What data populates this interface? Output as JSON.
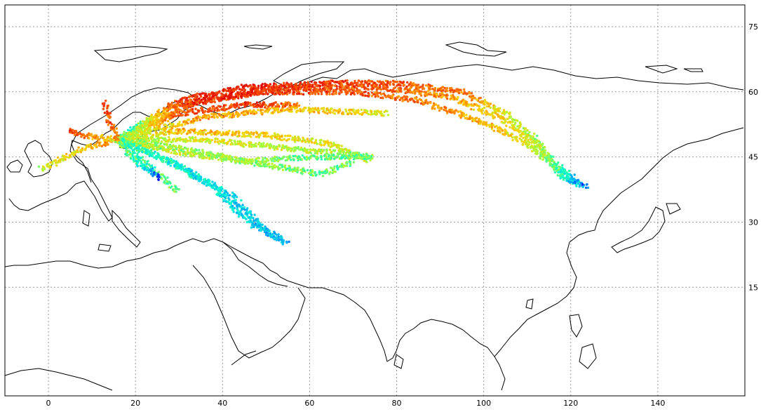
{
  "map": {
    "projection": "equirectangular",
    "lon_range": [
      -10,
      160
    ],
    "lat_range": [
      -10,
      80
    ],
    "grid": true,
    "x_ticks": [
      {
        "value": 0,
        "label": "0"
      },
      {
        "value": 20,
        "label": "20"
      },
      {
        "value": 40,
        "label": "40"
      },
      {
        "value": 60,
        "label": "60"
      },
      {
        "value": 80,
        "label": "80"
      },
      {
        "value": 100,
        "label": "100"
      },
      {
        "value": 120,
        "label": "120"
      },
      {
        "value": 140,
        "label": "140"
      }
    ],
    "y_ticks": [
      {
        "value": 15,
        "label": "15"
      },
      {
        "value": 30,
        "label": "30"
      },
      {
        "value": 45,
        "label": "45"
      },
      {
        "value": 60,
        "label": "60"
      },
      {
        "value": 75,
        "label": "75"
      }
    ],
    "colormap": [
      "#0000ff",
      "#00a0ff",
      "#00ffd0",
      "#a0ff40",
      "#ffd000",
      "#ff6000",
      "#e00000"
    ],
    "coastline_color": "#000000",
    "grid_color": "#999999"
  },
  "chart_data": {
    "type": "scatter",
    "description_source": "flight track points colored by value (jet colormap)",
    "hub": [
      16.4,
      48.1
    ],
    "routes": [
      {
        "name": "r1",
        "points": [
          [
            16,
            49
          ],
          [
            30,
            58
          ],
          [
            45,
            61
          ],
          [
            65,
            62
          ],
          [
            80,
            62
          ],
          [
            95,
            60
          ],
          [
            105,
            55
          ],
          [
            112,
            49
          ],
          [
            117,
            42
          ],
          [
            121,
            39
          ],
          [
            124,
            38
          ]
        ],
        "colors": [
          0.2,
          0.9,
          0.95,
          0.9,
          0.85,
          0.8,
          0.6,
          0.5,
          0.4,
          0.3,
          0.05
        ]
      },
      {
        "name": "r2",
        "points": [
          [
            16,
            49
          ],
          [
            30,
            57
          ],
          [
            50,
            60
          ],
          [
            70,
            60
          ],
          [
            85,
            58
          ],
          [
            100,
            53
          ],
          [
            110,
            48
          ],
          [
            116,
            43
          ],
          [
            119,
            40
          ],
          [
            121,
            39
          ]
        ],
        "colors": [
          0.3,
          0.85,
          0.9,
          0.85,
          0.8,
          0.7,
          0.6,
          0.45,
          0.3,
          0.1
        ]
      },
      {
        "name": "r3",
        "points": [
          [
            16,
            49
          ],
          [
            35,
            58
          ],
          [
            55,
            61
          ],
          [
            75,
            61
          ],
          [
            92,
            59
          ],
          [
            104,
            54
          ],
          [
            113,
            47
          ],
          [
            118,
            42
          ],
          [
            122,
            39
          ]
        ],
        "colors": [
          0.4,
          0.95,
          0.9,
          0.85,
          0.75,
          0.65,
          0.55,
          0.4,
          0.15
        ]
      },
      {
        "name": "r4",
        "points": [
          [
            16,
            49
          ],
          [
            30,
            55
          ],
          [
            45,
            57
          ],
          [
            58,
            57
          ]
        ],
        "colors": [
          0.4,
          0.85,
          0.9,
          0.8
        ]
      },
      {
        "name": "r5",
        "points": [
          [
            16,
            49
          ],
          [
            35,
            54
          ],
          [
            55,
            56
          ],
          [
            78,
            55
          ]
        ],
        "colors": [
          0.5,
          0.75,
          0.7,
          0.6
        ]
      },
      {
        "name": "r6",
        "points": [
          [
            16,
            49
          ],
          [
            30,
            51
          ],
          [
            50,
            50
          ],
          [
            65,
            48
          ],
          [
            74,
            44
          ]
        ],
        "colors": [
          0.5,
          0.7,
          0.65,
          0.6,
          0.55
        ]
      },
      {
        "name": "r7",
        "points": [
          [
            16,
            49
          ],
          [
            35,
            49
          ],
          [
            55,
            47
          ],
          [
            75,
            45
          ]
        ],
        "colors": [
          0.5,
          0.6,
          0.55,
          0.5
        ]
      },
      {
        "name": "r8",
        "points": [
          [
            16,
            49
          ],
          [
            30,
            46
          ],
          [
            45,
            44
          ],
          [
            60,
            45
          ],
          [
            74,
            45
          ]
        ],
        "colors": [
          0.6,
          0.55,
          0.5,
          0.45,
          0.45
        ]
      },
      {
        "name": "r9",
        "points": [
          [
            16,
            49
          ],
          [
            30,
            47
          ],
          [
            45,
            44
          ],
          [
            63,
            41
          ],
          [
            70,
            44
          ]
        ],
        "colors": [
          0.5,
          0.5,
          0.5,
          0.45,
          0.45
        ]
      },
      {
        "name": "r10",
        "points": [
          [
            16,
            49
          ],
          [
            28,
            44
          ],
          [
            38,
            38
          ],
          [
            46,
            30
          ],
          [
            53,
            26
          ]
        ],
        "colors": [
          0.4,
          0.35,
          0.3,
          0.25,
          0.2
        ]
      },
      {
        "name": "r11",
        "points": [
          [
            16,
            49
          ],
          [
            30,
            43
          ],
          [
            42,
            36
          ],
          [
            50,
            28
          ],
          [
            55,
            25
          ]
        ],
        "colors": [
          0.4,
          0.3,
          0.25,
          0.22,
          0.2
        ]
      },
      {
        "name": "r12",
        "points": [
          [
            16,
            49
          ],
          [
            24,
            42
          ],
          [
            30,
            37
          ]
        ],
        "colors": [
          0.3,
          0.4,
          0.45
        ]
      },
      {
        "name": "r13",
        "points": [
          [
            16,
            49
          ],
          [
            8,
            47
          ],
          [
            0,
            43
          ],
          [
            -2,
            42
          ]
        ],
        "colors": [
          0.8,
          0.65,
          0.6,
          0.5
        ]
      },
      {
        "name": "r14",
        "points": [
          [
            16,
            49
          ],
          [
            8,
            50
          ],
          [
            4,
            51
          ]
        ],
        "colors": [
          0.6,
          0.8,
          0.9
        ]
      },
      {
        "name": "r15",
        "points": [
          [
            16,
            49
          ],
          [
            14,
            53
          ],
          [
            13,
            58
          ]
        ],
        "colors": [
          0.8,
          0.85,
          0.9
        ]
      },
      {
        "name": "r16",
        "points": [
          [
            16,
            49
          ],
          [
            20,
            44
          ],
          [
            26,
            40
          ]
        ],
        "colors": [
          0.5,
          0.4,
          0.05
        ]
      }
    ]
  }
}
